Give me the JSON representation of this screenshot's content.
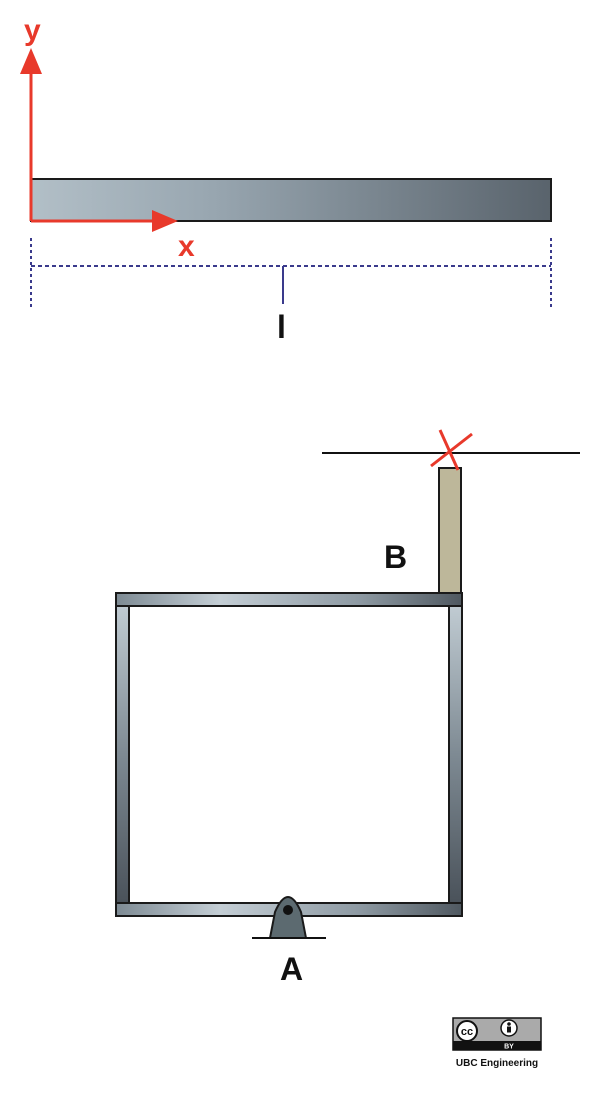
{
  "beam_diagram": {
    "axis_y_label": "y",
    "axis_x_label": "x",
    "length_label": "l",
    "colors": {
      "axis": "#e8392b",
      "dimension": "#3a3a8c",
      "beam_light": "#a9b6bf",
      "beam_dark": "#5c6670"
    }
  },
  "frame_diagram": {
    "label_b": "B",
    "label_a": "A",
    "colors": {
      "frame_light": "#b8c4cc",
      "frame_dark": "#4a525a",
      "post": "#bdb79a",
      "cross": "#e8392b",
      "support": "#5c6a70"
    }
  },
  "license": {
    "badge_cc": "cc",
    "badge_by": "BY",
    "caption": "UBC Engineering"
  }
}
